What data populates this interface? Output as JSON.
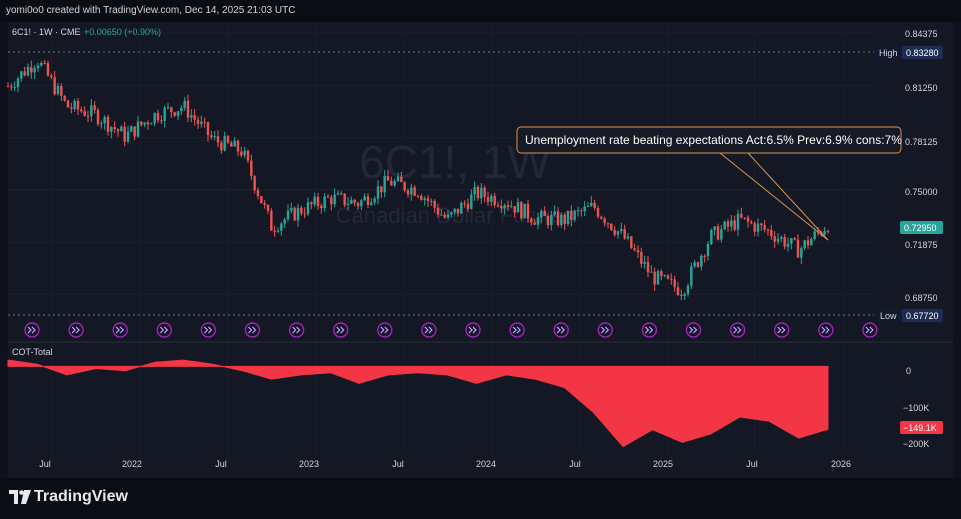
{
  "header": {
    "credit": "yomi0o0 created with TradingView.com, Dec 14, 2025 21:03 UTC"
  },
  "legend": {
    "symbol_line": "6C1! · 1W · CME",
    "change": "+0.00650 (+0.90%)"
  },
  "watermark": {
    "line1": "6C1!, 1W",
    "line2": "Canadian Dollar Futures"
  },
  "annotation": {
    "text": "Unemployment rate beating expectations Act:6.5% Prev:6.9% cons:7%"
  },
  "price_axis": {
    "ticks": [
      "0.84375",
      "0.81250",
      "0.78125",
      "0.75000",
      "0.71875",
      "0.68750"
    ]
  },
  "markers": {
    "high_label": "High",
    "high_value": "0.83280",
    "low_label": "Low",
    "low_value": "0.67720",
    "last_value": "0.72950"
  },
  "cot": {
    "title": "COT-Total",
    "ticks": [
      "0",
      "−100K",
      "−200K"
    ],
    "last_value": "−149.1K"
  },
  "time_axis": {
    "labels": [
      "Jul",
      "2022",
      "Jul",
      "2023",
      "Jul",
      "2024",
      "Jul",
      "2025",
      "Jul",
      "2026"
    ]
  },
  "brand": {
    "name": "TradingView"
  },
  "colors": {
    "up": "#26a69a",
    "down": "#ef5350",
    "cot_fill": "#f23645",
    "event_icon": "#9c27b0",
    "annotation_border": "#d8924a"
  },
  "chart_data": [
    {
      "type": "line",
      "name": "Canadian Dollar Futures weekly close (approx.)",
      "x": [
        "2021-04",
        "2021-06",
        "2021-08",
        "2021-10",
        "2021-12",
        "2022-02",
        "2022-04",
        "2022-06",
        "2022-08",
        "2022-10",
        "2022-12",
        "2023-02",
        "2023-04",
        "2023-06",
        "2023-08",
        "2023-10",
        "2023-12",
        "2024-02",
        "2024-04",
        "2024-06",
        "2024-08",
        "2024-10",
        "2024-12",
        "2025-02",
        "2025-04",
        "2025-06",
        "2025-08",
        "2025-10",
        "2025-12"
      ],
      "values": [
        0.812,
        0.828,
        0.8,
        0.795,
        0.782,
        0.795,
        0.8,
        0.78,
        0.773,
        0.728,
        0.738,
        0.745,
        0.742,
        0.755,
        0.75,
        0.732,
        0.748,
        0.743,
        0.733,
        0.732,
        0.74,
        0.722,
        0.698,
        0.69,
        0.722,
        0.732,
        0.725,
        0.714,
        0.7295
      ],
      "high": 0.8328,
      "low": 0.6772,
      "last": 0.7295,
      "ylim": [
        0.6745,
        0.848
      ]
    },
    {
      "type": "area",
      "title": "COT-Total",
      "x": [
        "2021-04",
        "2021-06",
        "2021-08",
        "2021-10",
        "2021-12",
        "2022-02",
        "2022-04",
        "2022-06",
        "2022-08",
        "2022-10",
        "2022-12",
        "2023-02",
        "2023-04",
        "2023-06",
        "2023-08",
        "2023-10",
        "2023-12",
        "2024-02",
        "2024-04",
        "2024-06",
        "2024-08",
        "2024-10",
        "2024-12",
        "2025-02",
        "2025-04",
        "2025-06",
        "2025-08",
        "2025-10",
        "2025-12"
      ],
      "values": [
        15,
        5,
        -20,
        -5,
        -10,
        10,
        15,
        5,
        -10,
        -30,
        -20,
        -15,
        -40,
        -20,
        -15,
        -20,
        -40,
        -20,
        -30,
        -50,
        -110,
        -190,
        -150,
        -180,
        -160,
        -120,
        -130,
        -170,
        -149.1
      ],
      "ylim": [
        -210,
        20
      ]
    }
  ]
}
